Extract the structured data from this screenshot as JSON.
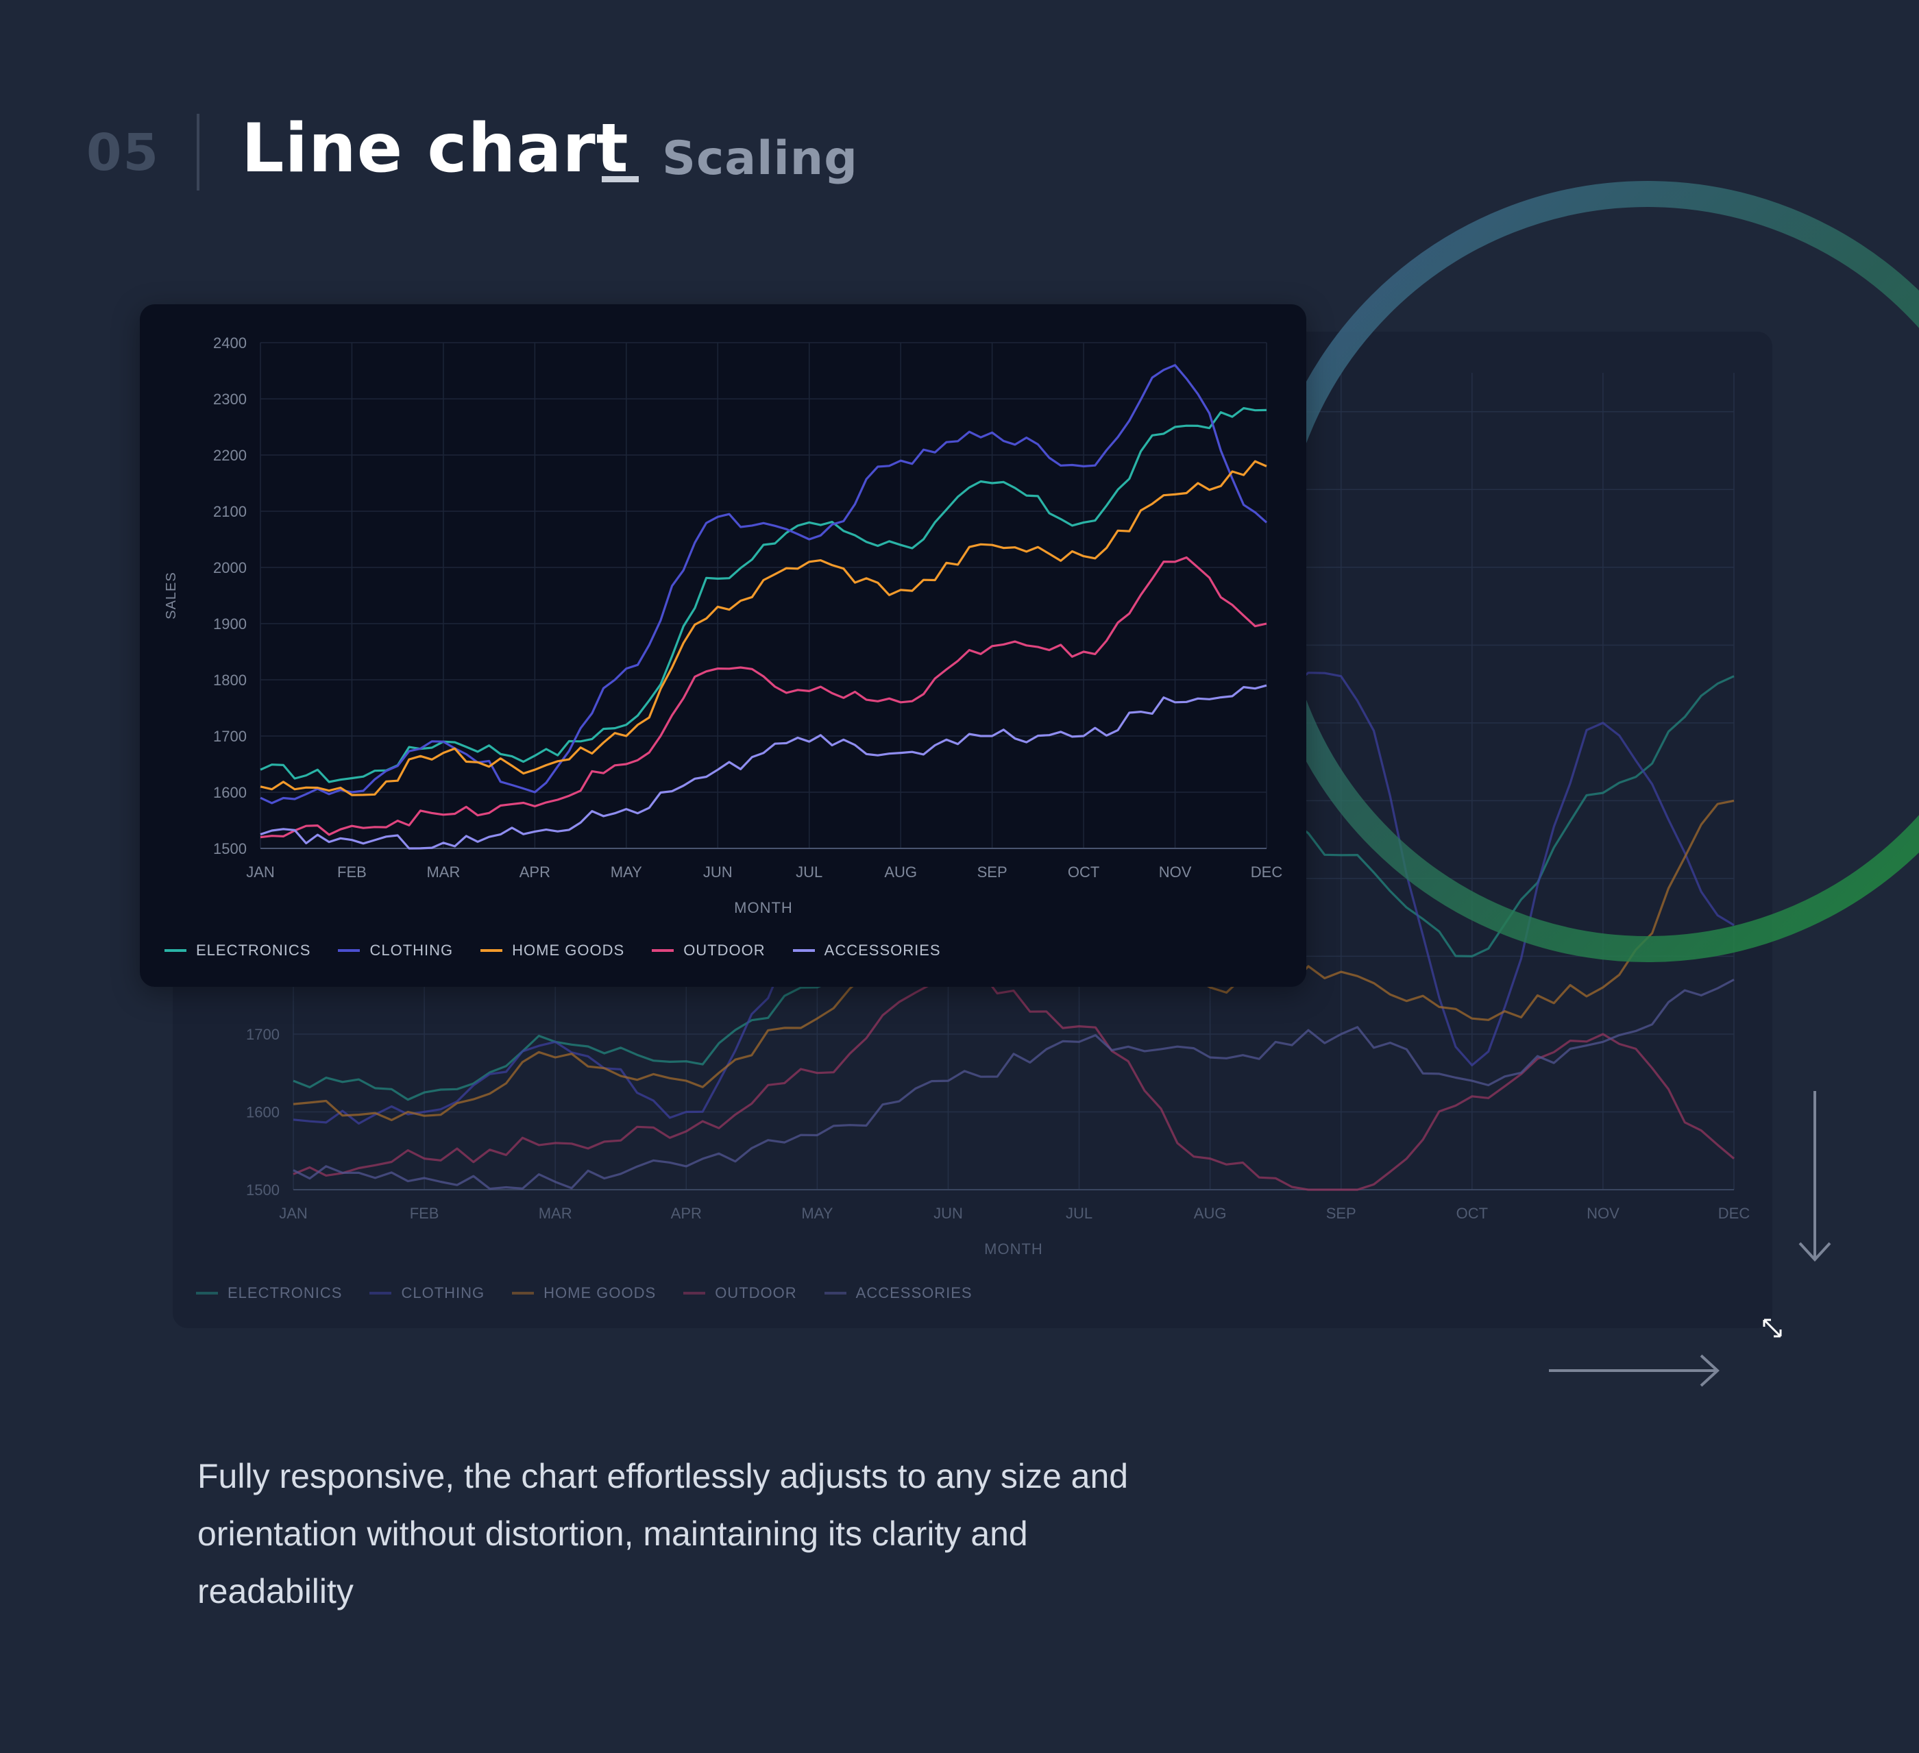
{
  "header": {
    "section_number": "05",
    "title": "Line chart",
    "subtitle": "Scaling"
  },
  "description": "Fully responsive, the chart effortlessly adjusts to any size and orientation without distortion, maintaining its clarity and readability",
  "colors": {
    "background": "#1e2739",
    "ring_start": "#3e5f8f",
    "ring_end": "#1f8c3a"
  },
  "icons": {
    "resize": "resize-diagonal-icon",
    "arrow_down": "arrow-down-icon",
    "arrow_right": "arrow-right-icon"
  },
  "chart_data": [
    {
      "type": "line",
      "variant": "front",
      "xlabel": "MONTH",
      "ylabel": "SALES",
      "x": [
        "JAN",
        "FEB",
        "MAR",
        "APR",
        "MAY",
        "JUN",
        "JUL",
        "AUG",
        "SEP",
        "OCT",
        "NOV",
        "DEC"
      ],
      "yticks": [
        1500,
        1600,
        1700,
        1800,
        1900,
        2000,
        2100,
        2200,
        2300,
        2400
      ],
      "ylim": [
        1500,
        2400
      ],
      "grid": true,
      "legend": "bottom-left",
      "series": [
        {
          "name": "ELECTRONICS",
          "color": "#2ab3a6",
          "values": [
            1640,
            1625,
            1690,
            1665,
            1720,
            1980,
            2080,
            2040,
            2150,
            2080,
            2250,
            2280
          ]
        },
        {
          "name": "CLOTHING",
          "color": "#4b4fd0",
          "values": [
            1590,
            1600,
            1690,
            1600,
            1820,
            2090,
            2050,
            2190,
            2240,
            2180,
            2360,
            2080
          ]
        },
        {
          "name": "HOME GOODS",
          "color": "#f39a2b",
          "values": [
            1610,
            1595,
            1670,
            1640,
            1700,
            1930,
            2010,
            1960,
            2040,
            2020,
            2130,
            2180
          ]
        },
        {
          "name": "OUTDOOR",
          "color": "#e0457f",
          "values": [
            1520,
            1540,
            1560,
            1575,
            1650,
            1820,
            1780,
            1760,
            1860,
            1850,
            2010,
            1900
          ]
        },
        {
          "name": "ACCESSORIES",
          "color": "#8f8df0",
          "values": [
            1525,
            1515,
            1510,
            1530,
            1570,
            1640,
            1690,
            1670,
            1700,
            1700,
            1760,
            1790
          ]
        }
      ]
    },
    {
      "type": "line",
      "variant": "back",
      "xlabel": "MONTH",
      "x": [
        "JAN",
        "FEB",
        "MAR",
        "APR",
        "MAY",
        "JUN",
        "JUL",
        "AUG",
        "SEP",
        "OCT",
        "NOV",
        "DEC"
      ],
      "yticks": [
        1500,
        1600,
        1700
      ],
      "ylim": [
        1500,
        2550
      ],
      "grid": true,
      "legend": "bottom-left",
      "series": [
        {
          "name": "ELECTRONICS",
          "color": "#23857d",
          "values": [
            1640,
            1625,
            1690,
            1665,
            1760,
            1970,
            2080,
            2040,
            1930,
            1800,
            2010,
            2160
          ]
        },
        {
          "name": "CLOTHING",
          "color": "#3c3f9d",
          "values": [
            1590,
            1600,
            1690,
            1600,
            1830,
            2090,
            2100,
            2120,
            2160,
            1660,
            2100,
            1840
          ]
        },
        {
          "name": "HOME GOODS",
          "color": "#a06a2c",
          "values": [
            1610,
            1595,
            1670,
            1640,
            1720,
            1920,
            1980,
            1760,
            1780,
            1720,
            1760,
            2000
          ]
        },
        {
          "name": "OUTDOOR",
          "color": "#93365f",
          "values": [
            1520,
            1540,
            1560,
            1575,
            1650,
            1780,
            1710,
            1540,
            1480,
            1620,
            1700,
            1540
          ]
        },
        {
          "name": "ACCESSORIES",
          "color": "#525593",
          "values": [
            1525,
            1515,
            1510,
            1530,
            1570,
            1640,
            1690,
            1670,
            1700,
            1640,
            1690,
            1770
          ]
        }
      ]
    }
  ]
}
